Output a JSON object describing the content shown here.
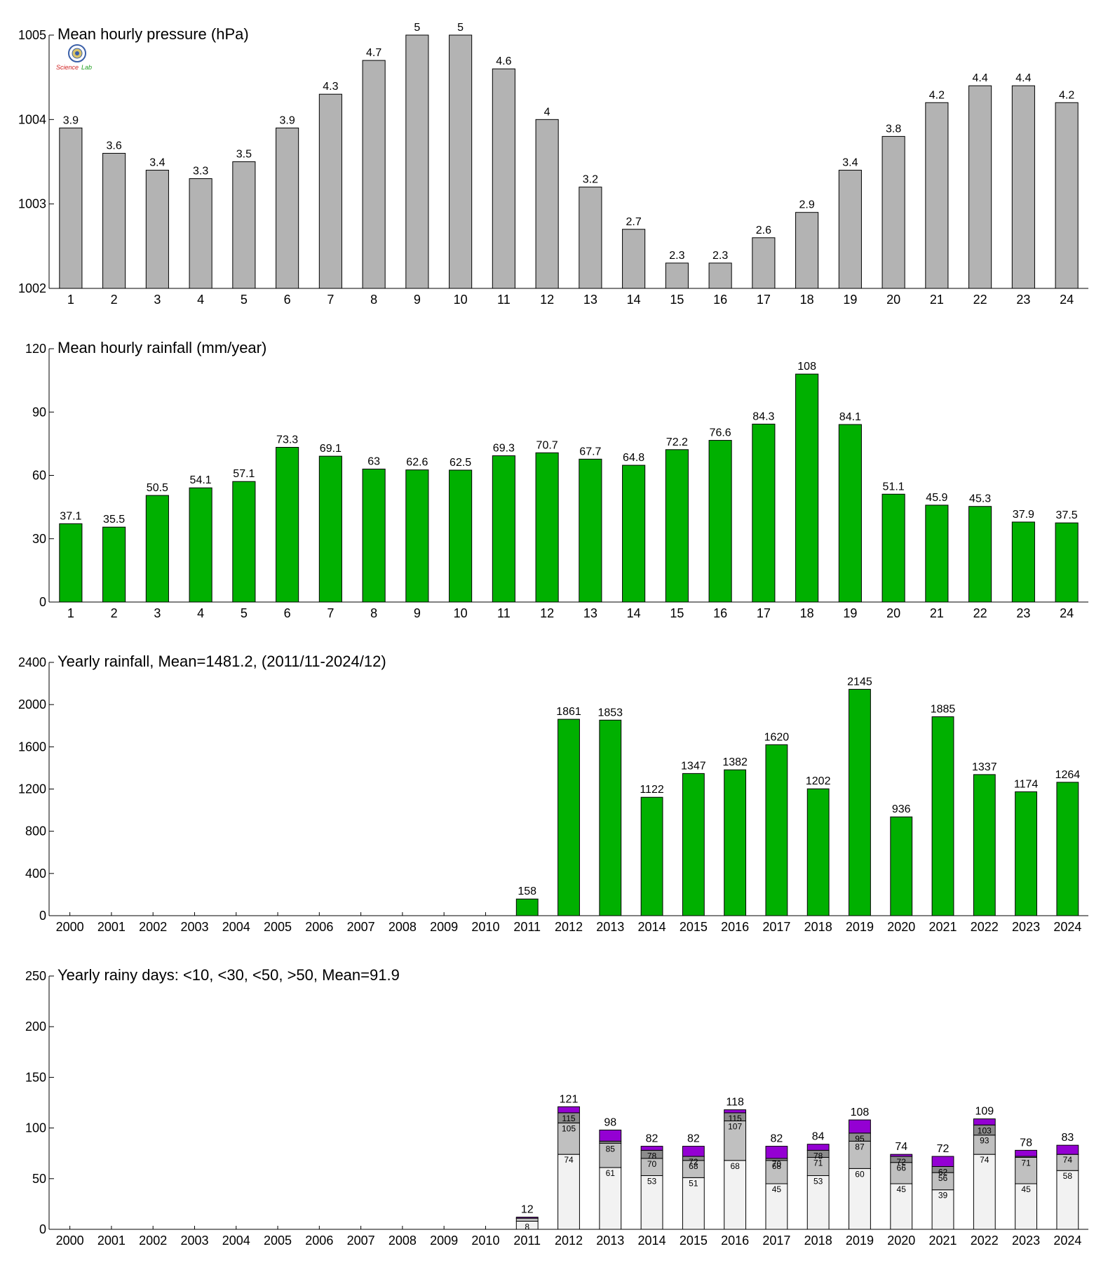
{
  "colors": {
    "pressure": "#b3b3b3",
    "rain": "#00b000",
    "days_lt10": "#f2f2f2",
    "days_lt30": "#c0c0c0",
    "days_lt50": "#8c8c8c",
    "days_gt50": "#9400d3",
    "axis": "#000000"
  },
  "logo": {
    "text_a": "Science",
    "text_b": "Lab"
  },
  "chart_data": [
    {
      "type": "bar",
      "title": "Mean hourly pressure (hPa)",
      "categories": [
        "1",
        "2",
        "3",
        "4",
        "5",
        "6",
        "7",
        "8",
        "9",
        "10",
        "11",
        "12",
        "13",
        "14",
        "15",
        "16",
        "17",
        "18",
        "19",
        "20",
        "21",
        "22",
        "23",
        "24"
      ],
      "values": [
        1003.9,
        1003.6,
        1003.4,
        1003.3,
        1003.5,
        1003.9,
        1004.3,
        1004.7,
        1005,
        1005,
        1004.6,
        1004,
        1003.2,
        1002.7,
        1002.3,
        1002.3,
        1002.6,
        1002.9,
        1003.4,
        1003.8,
        1004.2,
        1004.4,
        1004.4,
        1004.2
      ],
      "labels": [
        "3.9",
        "3.6",
        "3.4",
        "3.3",
        "3.5",
        "3.9",
        "4.3",
        "4.7",
        "5",
        "5",
        "4.6",
        "4",
        "3.2",
        "2.7",
        "2.3",
        "2.3",
        "2.6",
        "2.9",
        "3.4",
        "3.8",
        "4.2",
        "4.4",
        "4.4",
        "4.2"
      ],
      "ylim": [
        1002,
        1005
      ],
      "yticks": [
        "1002",
        "1003",
        "1004",
        "1005"
      ],
      "color_key": "pressure"
    },
    {
      "type": "bar",
      "title": "Mean hourly rainfall (mm/year)",
      "categories": [
        "1",
        "2",
        "3",
        "4",
        "5",
        "6",
        "7",
        "8",
        "9",
        "10",
        "11",
        "12",
        "13",
        "14",
        "15",
        "16",
        "17",
        "18",
        "19",
        "20",
        "21",
        "22",
        "23",
        "24"
      ],
      "values": [
        37.1,
        35.5,
        50.5,
        54.1,
        57.1,
        73.3,
        69.1,
        63,
        62.6,
        62.5,
        69.3,
        70.7,
        67.7,
        64.8,
        72.2,
        76.6,
        84.3,
        108,
        84.1,
        51.1,
        45.9,
        45.3,
        37.9,
        37.5
      ],
      "labels": [
        "37.1",
        "35.5",
        "50.5",
        "54.1",
        "57.1",
        "73.3",
        "69.1",
        "63",
        "62.6",
        "62.5",
        "69.3",
        "70.7",
        "67.7",
        "64.8",
        "72.2",
        "76.6",
        "84.3",
        "108",
        "84.1",
        "51.1",
        "45.9",
        "45.3",
        "37.9",
        "37.5"
      ],
      "ylim": [
        0,
        120
      ],
      "yticks": [
        "0",
        "30",
        "60",
        "90",
        "120"
      ],
      "color_key": "rain"
    },
    {
      "type": "bar",
      "title": "Yearly rainfall, Mean=1481.2, (2011/11-2024/12)",
      "categories": [
        "2000",
        "2001",
        "2002",
        "2003",
        "2004",
        "2005",
        "2006",
        "2007",
        "2008",
        "2009",
        "2010",
        "2011",
        "2012",
        "2013",
        "2014",
        "2015",
        "2016",
        "2017",
        "2018",
        "2019",
        "2020",
        "2021",
        "2022",
        "2023",
        "2024"
      ],
      "values": [
        null,
        null,
        null,
        null,
        null,
        null,
        null,
        null,
        null,
        null,
        null,
        158,
        1861,
        1853,
        1122,
        1347,
        1382,
        1620,
        1202,
        2145,
        936,
        1885,
        1337,
        1174,
        1264
      ],
      "labels": [
        "",
        "",
        "",
        "",
        "",
        "",
        "",
        "",
        "",
        "",
        "",
        "158",
        "1861",
        "1853",
        "1122",
        "1347",
        "1382",
        "1620",
        "1202",
        "2145",
        "936",
        "1885",
        "1337",
        "1174",
        "1264"
      ],
      "ylim": [
        0,
        2400
      ],
      "yticks": [
        "0",
        "400",
        "800",
        "1200",
        "1600",
        "2000",
        "2400"
      ],
      "color_key": "rain"
    },
    {
      "type": "bar",
      "stacked": true,
      "title": "Yearly rainy days: <10, <30, <50, >50, Mean=91.9",
      "categories": [
        "2000",
        "2001",
        "2002",
        "2003",
        "2004",
        "2005",
        "2006",
        "2007",
        "2008",
        "2009",
        "2010",
        "2011",
        "2012",
        "2013",
        "2014",
        "2015",
        "2016",
        "2017",
        "2018",
        "2019",
        "2020",
        "2021",
        "2022",
        "2023",
        "2024"
      ],
      "ylim": [
        0,
        250
      ],
      "yticks": [
        "0",
        "50",
        "100",
        "150",
        "200",
        "250"
      ],
      "cumulative": {
        "lt10": [
          null,
          null,
          null,
          null,
          null,
          null,
          null,
          null,
          null,
          null,
          null,
          8,
          74,
          61,
          53,
          51,
          68,
          45,
          53,
          60,
          45,
          39,
          74,
          45,
          58
        ],
        "lt30": [
          null,
          null,
          null,
          null,
          null,
          null,
          null,
          null,
          null,
          null,
          null,
          11,
          105,
          85,
          70,
          68,
          107,
          68,
          71,
          87,
          66,
          56,
          93,
          71,
          74
        ],
        "lt50": [
          null,
          null,
          null,
          null,
          null,
          null,
          null,
          null,
          null,
          null,
          null,
          11,
          115,
          87,
          78,
          72,
          115,
          70,
          78,
          95,
          72,
          62,
          103,
          72,
          74
        ],
        "total": [
          null,
          null,
          null,
          null,
          null,
          null,
          null,
          null,
          null,
          null,
          null,
          12,
          121,
          98,
          82,
          82,
          118,
          82,
          84,
          108,
          74,
          72,
          109,
          78,
          83
        ]
      },
      "inner_labels": {
        "lt10": [
          "",
          "",
          "",
          "",
          "",
          "",
          "",
          "",
          "",
          "",
          "",
          "8",
          "74",
          "61",
          "53",
          "51",
          "68",
          "45",
          "53",
          "60",
          "45",
          "39",
          "74",
          "45",
          "58"
        ],
        "lt30": [
          "",
          "",
          "",
          "",
          "",
          "",
          "",
          "",
          "",
          "",
          "",
          "",
          "105",
          "85",
          "70",
          "68",
          "107",
          "68",
          "71",
          "87",
          "66",
          "56",
          "93",
          "71",
          "74"
        ],
        "lt50": [
          "",
          "",
          "",
          "",
          "",
          "",
          "",
          "",
          "",
          "",
          "",
          "",
          "115",
          "",
          "78",
          "72",
          "115",
          "70",
          "78",
          "95",
          "72",
          "62",
          "103",
          "",
          ""
        ]
      },
      "total_labels": [
        "",
        "",
        "",
        "",
        "",
        "",
        "",
        "",
        "",
        "",
        "",
        "12",
        "121",
        "98",
        "82",
        "82",
        "118",
        "82",
        "84",
        "108",
        "74",
        "72",
        "109",
        "78",
        "83"
      ],
      "series_color_keys": [
        "days_lt10",
        "days_lt30",
        "days_lt50",
        "days_gt50"
      ]
    }
  ]
}
